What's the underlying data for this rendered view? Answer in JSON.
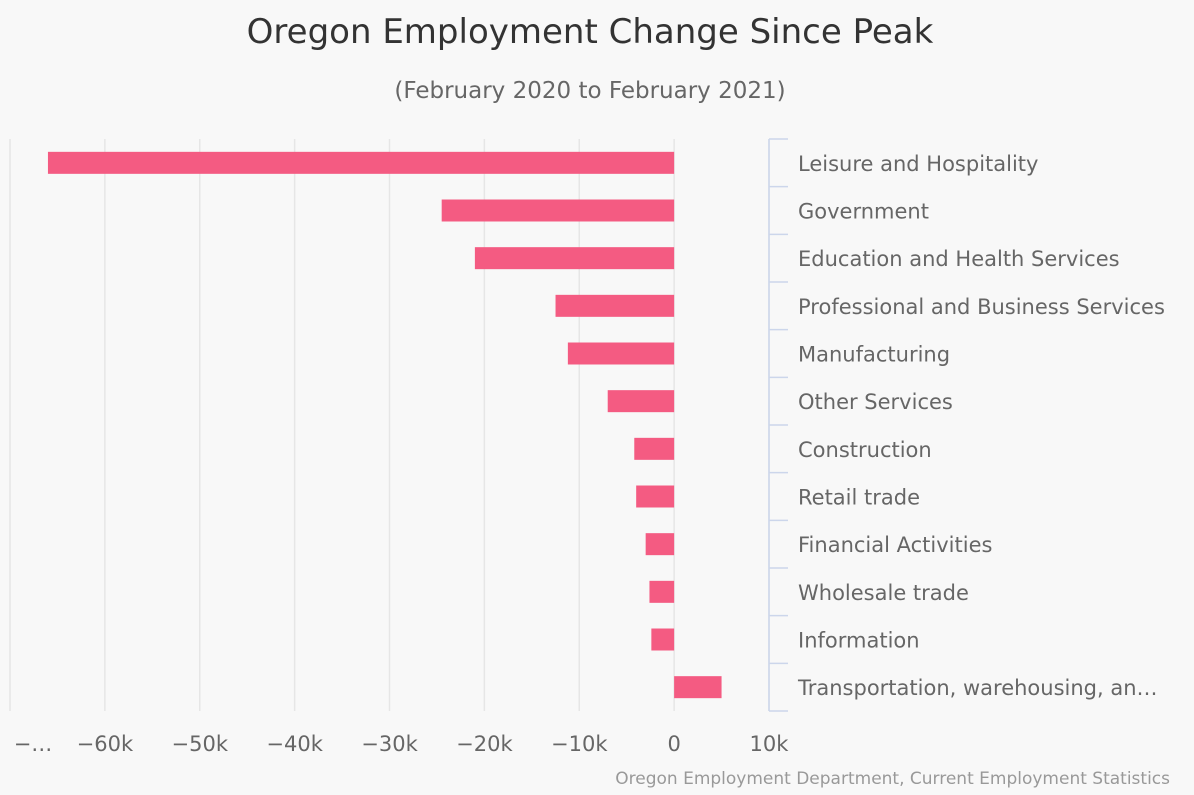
{
  "chart_data": {
    "type": "bar",
    "orientation": "horizontal",
    "title": "Oregon Employment Change Since Peak",
    "subtitle": "(February 2020 to February 2021)",
    "categories": [
      "Leisure and Hospitality",
      "Government",
      "Education and Health Services",
      "Professional and Business Services",
      "Manufacturing",
      "Other Services",
      "Construction",
      "Retail trade",
      "Financial Activities",
      "Wholesale trade",
      "Information",
      "Transportation, warehousing, an…"
    ],
    "values": [
      -66000,
      -24500,
      -21000,
      -12500,
      -11200,
      -7000,
      -4200,
      -4000,
      -3000,
      -2600,
      -2400,
      5000
    ],
    "xlim": [
      -70000,
      10000
    ],
    "ticks": [
      -70000,
      -60000,
      -50000,
      -40000,
      -30000,
      -20000,
      -10000,
      0,
      10000
    ],
    "tick_labels": [
      "−…",
      "−60k",
      "−50k",
      "−40k",
      "−30k",
      "−20k",
      "−10k",
      "0",
      "10k"
    ],
    "xlabel": "",
    "ylabel": "",
    "grid": true,
    "legend": false,
    "bar_color": "#f45b82",
    "credit": "Oregon Employment Department, Current Employment Statistics"
  }
}
